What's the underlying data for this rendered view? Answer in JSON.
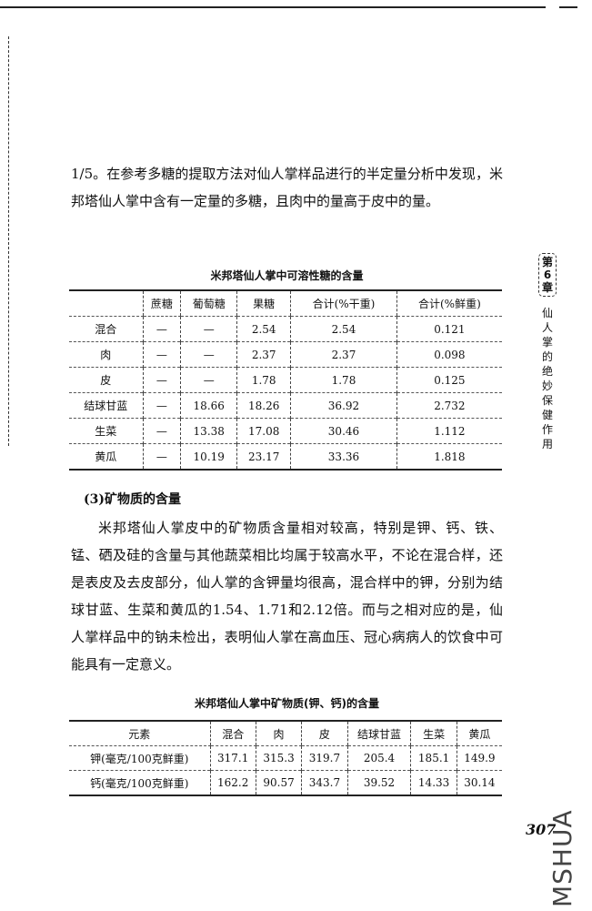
{
  "paragraph1": "1/5。在参考多糖的提取方法对仙人掌样品进行的半定量分析中发现，米邦塔仙人掌中含有一定量的多糖，且肉中的量高于皮中的量。",
  "table1": {
    "title": "米邦塔仙人掌中可溶性糖的含量",
    "headers": [
      "",
      "蔗糖",
      "葡萄糖",
      "果糖",
      "合计(%干重)",
      "合计(%鲜重)"
    ],
    "rows": [
      [
        "混合",
        "—",
        "—",
        "2.54",
        "2.54",
        "0.121"
      ],
      [
        "肉",
        "—",
        "—",
        "2.37",
        "2.37",
        "0.098"
      ],
      [
        "皮",
        "—",
        "—",
        "1.78",
        "1.78",
        "0.125"
      ],
      [
        "结球甘蓝",
        "—",
        "18.66",
        "18.26",
        "36.92",
        "2.732"
      ],
      [
        "生菜",
        "—",
        "13.38",
        "17.08",
        "30.46",
        "1.112"
      ],
      [
        "黄瓜",
        "—",
        "10.19",
        "23.17",
        "33.36",
        "1.818"
      ]
    ]
  },
  "section_heading": "(3)矿物质的含量",
  "paragraph2": "米邦塔仙人掌皮中的矿物质含量相对较高，特别是钾、钙、铁、锰、硒及硅的含量与其他蔬菜相比均属于较高水平，不论在混合样，还是表皮及去皮部分，仙人掌的含钾量均很高，混合样中的钾，分别为结球甘蓝、生菜和黄瓜的1.54、1.71和2.12倍。而与之相对应的是，仙人掌样品中的钠未检出，表明仙人掌在高血压、冠心病病人的饮食中可能具有一定意义。",
  "table2": {
    "title": "米邦塔仙人掌中矿物质(钾、钙)的含量",
    "headers": [
      "元素",
      "混合",
      "肉",
      "皮",
      "结球甘蓝",
      "生菜",
      "黄瓜"
    ],
    "rows": [
      [
        "钾(毫克/100克鲜重)",
        "317.1",
        "315.3",
        "319.7",
        "205.4",
        "185.1",
        "149.9"
      ],
      [
        "钙(毫克/100克鲜重)",
        "162.2",
        "90.57",
        "343.7",
        "39.52",
        "14.33",
        "30.14"
      ]
    ]
  },
  "sidebar": {
    "chapter_1": "第",
    "chapter_num": "6",
    "chapter_2": "章",
    "title": "仙人掌的绝妙保健作用"
  },
  "page_number": "307",
  "watermark": "MSHUA"
}
